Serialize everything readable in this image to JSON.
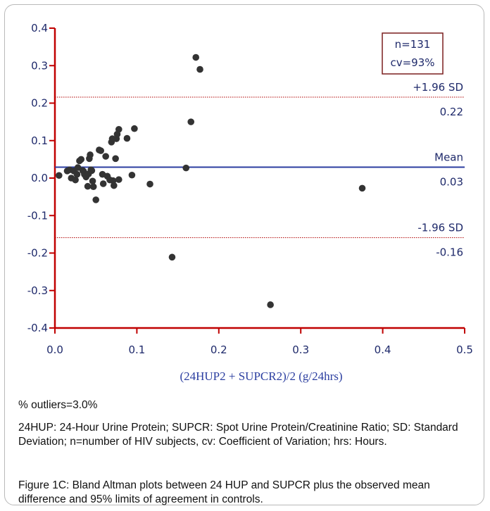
{
  "chart_data": {
    "type": "scatter",
    "title": "",
    "xlabel": "(24HUP2 + SUPCR2)/2 (g/24hrs)",
    "ylabel": "",
    "xlim": [
      0.0,
      0.5
    ],
    "ylim": [
      -0.4,
      0.4
    ],
    "xticks": [
      "0.0",
      "0.1",
      "0.2",
      "0.3",
      "0.4",
      "0.5"
    ],
    "yticks": [
      "0.4",
      "0.3",
      "0.2",
      "0.1",
      "0.0",
      "-0.1",
      "-0.2",
      "-0.3",
      "-0.4"
    ],
    "series": [
      {
        "points": [
          [
            0.005,
            0.007
          ],
          [
            0.015,
            0.019
          ],
          [
            0.018,
            0.022
          ],
          [
            0.02,
            0.0
          ],
          [
            0.023,
            0.019
          ],
          [
            0.025,
            -0.005
          ],
          [
            0.027,
            0.01
          ],
          [
            0.028,
            0.028
          ],
          [
            0.03,
            0.046
          ],
          [
            0.032,
            0.05
          ],
          [
            0.034,
            0.02
          ],
          [
            0.035,
            0.018
          ],
          [
            0.036,
            0.01
          ],
          [
            0.038,
            0.003
          ],
          [
            0.04,
            -0.022
          ],
          [
            0.041,
            0.011
          ],
          [
            0.042,
            0.052
          ],
          [
            0.043,
            0.062
          ],
          [
            0.044,
            0.022
          ],
          [
            0.045,
            0.02
          ],
          [
            0.046,
            -0.008
          ],
          [
            0.047,
            -0.023
          ],
          [
            0.05,
            -0.058
          ],
          [
            0.054,
            0.075
          ],
          [
            0.056,
            0.073
          ],
          [
            0.058,
            0.01
          ],
          [
            0.059,
            -0.015
          ],
          [
            0.062,
            0.058
          ],
          [
            0.064,
            0.005
          ],
          [
            0.067,
            -0.005
          ],
          [
            0.069,
            0.096
          ],
          [
            0.07,
            0.105
          ],
          [
            0.071,
            -0.007
          ],
          [
            0.072,
            -0.02
          ],
          [
            0.074,
            0.052
          ],
          [
            0.075,
            0.105
          ],
          [
            0.076,
            0.117
          ],
          [
            0.078,
            0.13
          ],
          [
            0.078,
            -0.004
          ],
          [
            0.088,
            0.106
          ],
          [
            0.094,
            0.008
          ],
          [
            0.097,
            0.132
          ],
          [
            0.116,
            -0.016
          ],
          [
            0.143,
            -0.211
          ],
          [
            0.16,
            0.027
          ],
          [
            0.166,
            0.15
          ],
          [
            0.172,
            0.322
          ],
          [
            0.177,
            0.29
          ],
          [
            0.263,
            -0.338
          ],
          [
            0.375,
            -0.027
          ]
        ]
      }
    ],
    "lines": [
      {
        "label": "+1.96 SD",
        "value_label": "0.22",
        "y": 0.216,
        "style": "dotted"
      },
      {
        "label": "Mean",
        "value_label": "0.03",
        "y": 0.029,
        "style": "solid"
      },
      {
        "label": "-1.96 SD",
        "value_label": "-0.16",
        "y": -0.159,
        "style": "dotted"
      }
    ],
    "legend_box": {
      "lines": [
        "n=131",
        "cv=93%"
      ],
      "placement": "top-right"
    },
    "colors": {
      "axis": "#c00000",
      "tick_text": "#1f2a6b",
      "point": "#333333",
      "mean_line": "#2b3ea0",
      "sd_line": "#b00000"
    }
  },
  "captions": {
    "outliers": "% outliers=3.0%",
    "abbreviations": "24HUP: 24-Hour Urine Protein; SUPCR: Spot Urine Protein/Creatinine Ratio; SD: Standard Deviation; n=number of HIV subjects, cv: Coefficient of Variation; hrs: Hours.",
    "figure": "Figure 1C: Bland Altman plots between 24 HUP and SUPCR plus the observed mean difference and 95% limits of agreement in controls."
  }
}
